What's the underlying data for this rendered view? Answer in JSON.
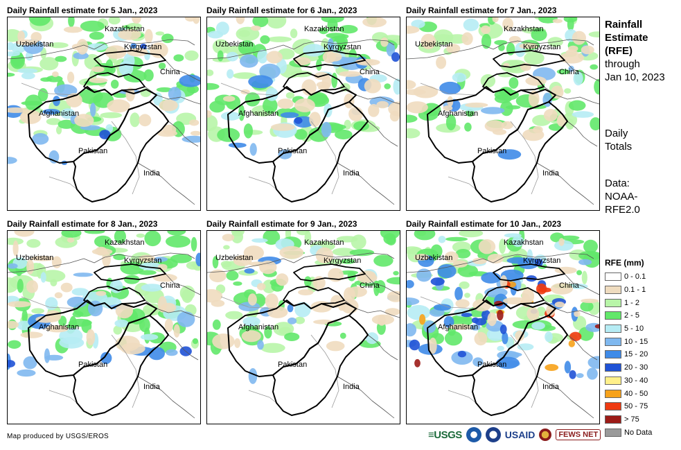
{
  "panels": [
    {
      "title": "Daily Rainfall estimate for 5 Jan., 2023",
      "intensity": "moderate"
    },
    {
      "title": "Daily Rainfall estimate for 6 Jan., 2023",
      "intensity": "moderate"
    },
    {
      "title": "Daily Rainfall estimate for 7 Jan., 2023",
      "intensity": "light"
    },
    {
      "title": "Daily Rainfall estimate for 8 Jan., 2023",
      "intensity": "moderate"
    },
    {
      "title": "Daily Rainfall estimate for 9 Jan., 2023",
      "intensity": "light"
    },
    {
      "title": "Daily Rainfall estimate for 10 Jan., 2023",
      "intensity": "heavy"
    }
  ],
  "country_labels": {
    "kazakhstan": "Kazakhstan",
    "uzbekistan": "Uzbekistan",
    "kyrgyzstan": "Kyrgyzstan",
    "china": "China",
    "afghanistan": "Afghanistan",
    "pakistan": "Pakistan",
    "india": "India"
  },
  "side": {
    "title_line1": "Rainfall",
    "title_line2": "Estimate",
    "title_line3": "(RFE)",
    "through": "through",
    "date": "Jan 10, 2023",
    "totals_line1": "Daily",
    "totals_line2": "Totals",
    "data_line1": "Data:",
    "data_line2": "NOAA-",
    "data_line3": "RFE2.0"
  },
  "legend": {
    "title": "RFE (mm)",
    "items": [
      {
        "label": "0 - 0.1",
        "color": "#ffffff"
      },
      {
        "label": "0.1 - 1",
        "color": "#efdcbf"
      },
      {
        "label": "1 - 2",
        "color": "#b8f5a8"
      },
      {
        "label": "2 - 5",
        "color": "#62e86a"
      },
      {
        "label": "5 - 10",
        "color": "#b6ecf4"
      },
      {
        "label": "10 - 15",
        "color": "#7fb8ef"
      },
      {
        "label": "15 - 20",
        "color": "#3f8be8"
      },
      {
        "label": "20 - 30",
        "color": "#1f52d6"
      },
      {
        "label": "30 - 40",
        "color": "#fff08a"
      },
      {
        "label": "40 - 50",
        "color": "#f7a21a"
      },
      {
        "label": "50 - 75",
        "color": "#ef3a10"
      },
      {
        "label": "> 75",
        "color": "#9c1b17"
      },
      {
        "label": "No Data",
        "color": "#9a9a9a"
      }
    ]
  },
  "credit": "Map produced by USGS/EROS",
  "logos": {
    "usgs": "≡USGS",
    "usaid": "USAID",
    "fews": "FEWS NET"
  }
}
